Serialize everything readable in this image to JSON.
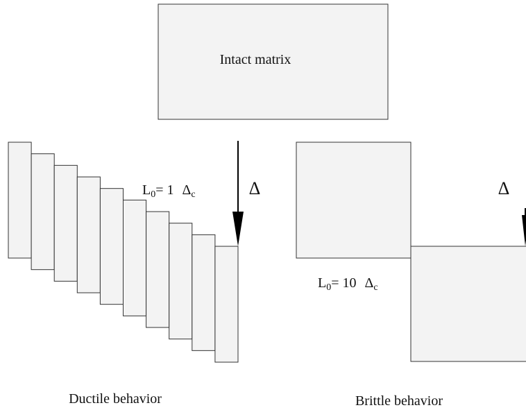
{
  "top": {
    "label": "Intact matrix"
  },
  "ductile": {
    "length_label": {
      "symbol": "L",
      "subscript": "0",
      "equals": "= 1",
      "delta": "Δ",
      "delta_subscript": "c"
    },
    "displacement": "Δ",
    "caption": "Ductile behavior"
  },
  "brittle": {
    "length_label": {
      "symbol": "L",
      "subscript": "0",
      "equals": "= 10",
      "delta": "Δ",
      "delta_subscript": "c"
    },
    "displacement": "Δ",
    "caption": "Brittle behavior"
  }
}
